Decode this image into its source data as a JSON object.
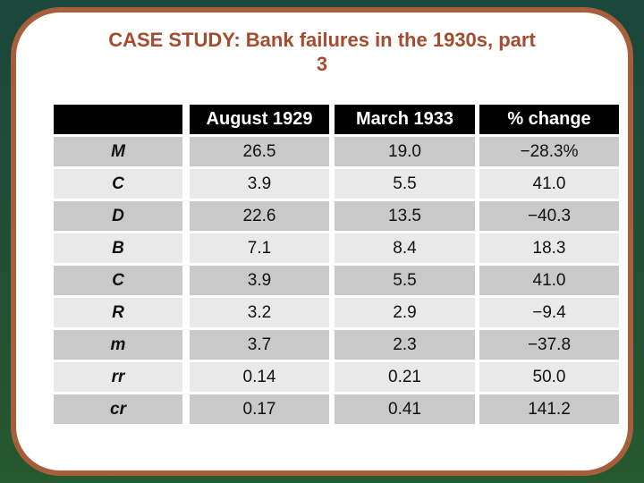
{
  "title": {
    "line1": "CASE STUDY: Bank failures in the 1930s, part",
    "line2": "3"
  },
  "table": {
    "headers": [
      "",
      "August 1929",
      "March 1933",
      "% change"
    ],
    "rows": [
      {
        "label": "M",
        "aug1929": "26.5",
        "mar1933": "19.0",
        "pct_change": "−28.3%"
      },
      {
        "label": "C",
        "aug1929": "3.9",
        "mar1933": "5.5",
        "pct_change": "41.0"
      },
      {
        "label": "D",
        "aug1929": "22.6",
        "mar1933": "13.5",
        "pct_change": "−40.3"
      },
      {
        "label": "B",
        "aug1929": "7.1",
        "mar1933": "8.4",
        "pct_change": "18.3"
      },
      {
        "label": "C",
        "aug1929": "3.9",
        "mar1933": "5.5",
        "pct_change": "41.0"
      },
      {
        "label": "R",
        "aug1929": "3.2",
        "mar1933": "2.9",
        "pct_change": "−9.4"
      },
      {
        "label": "m",
        "aug1929": "3.7",
        "mar1933": "2.3",
        "pct_change": "−37.8"
      },
      {
        "label": "rr",
        "aug1929": "0.14",
        "mar1933": "0.21",
        "pct_change": "50.0"
      },
      {
        "label": "cr",
        "aug1929": "0.17",
        "mar1933": "0.41",
        "pct_change": "141.2"
      }
    ]
  },
  "chart_data": {
    "type": "table",
    "title": "CASE STUDY: Bank failures in the 1930s, part 3",
    "columns": [
      "",
      "August 1929",
      "March 1933",
      "% change"
    ],
    "rows": [
      [
        "M",
        26.5,
        19.0,
        -28.3
      ],
      [
        "C",
        3.9,
        5.5,
        41.0
      ],
      [
        "D",
        22.6,
        13.5,
        -40.3
      ],
      [
        "B",
        7.1,
        8.4,
        18.3
      ],
      [
        "C",
        3.9,
        5.5,
        41.0
      ],
      [
        "R",
        3.2,
        2.9,
        -9.4
      ],
      [
        "m",
        3.7,
        2.3,
        -37.8
      ],
      [
        "rr",
        0.14,
        0.21,
        50.0
      ],
      [
        "cr",
        0.17,
        0.41,
        141.2
      ]
    ]
  },
  "colors": {
    "background_top": "#1b473d",
    "background_bottom": "#26592e",
    "slide_border": "#a85e3b",
    "title_text": "#a54b2e",
    "header_bg": "#000000",
    "header_text": "#ffffff",
    "row_dark": "#c9c9c9",
    "row_light": "#e9e9e9"
  }
}
